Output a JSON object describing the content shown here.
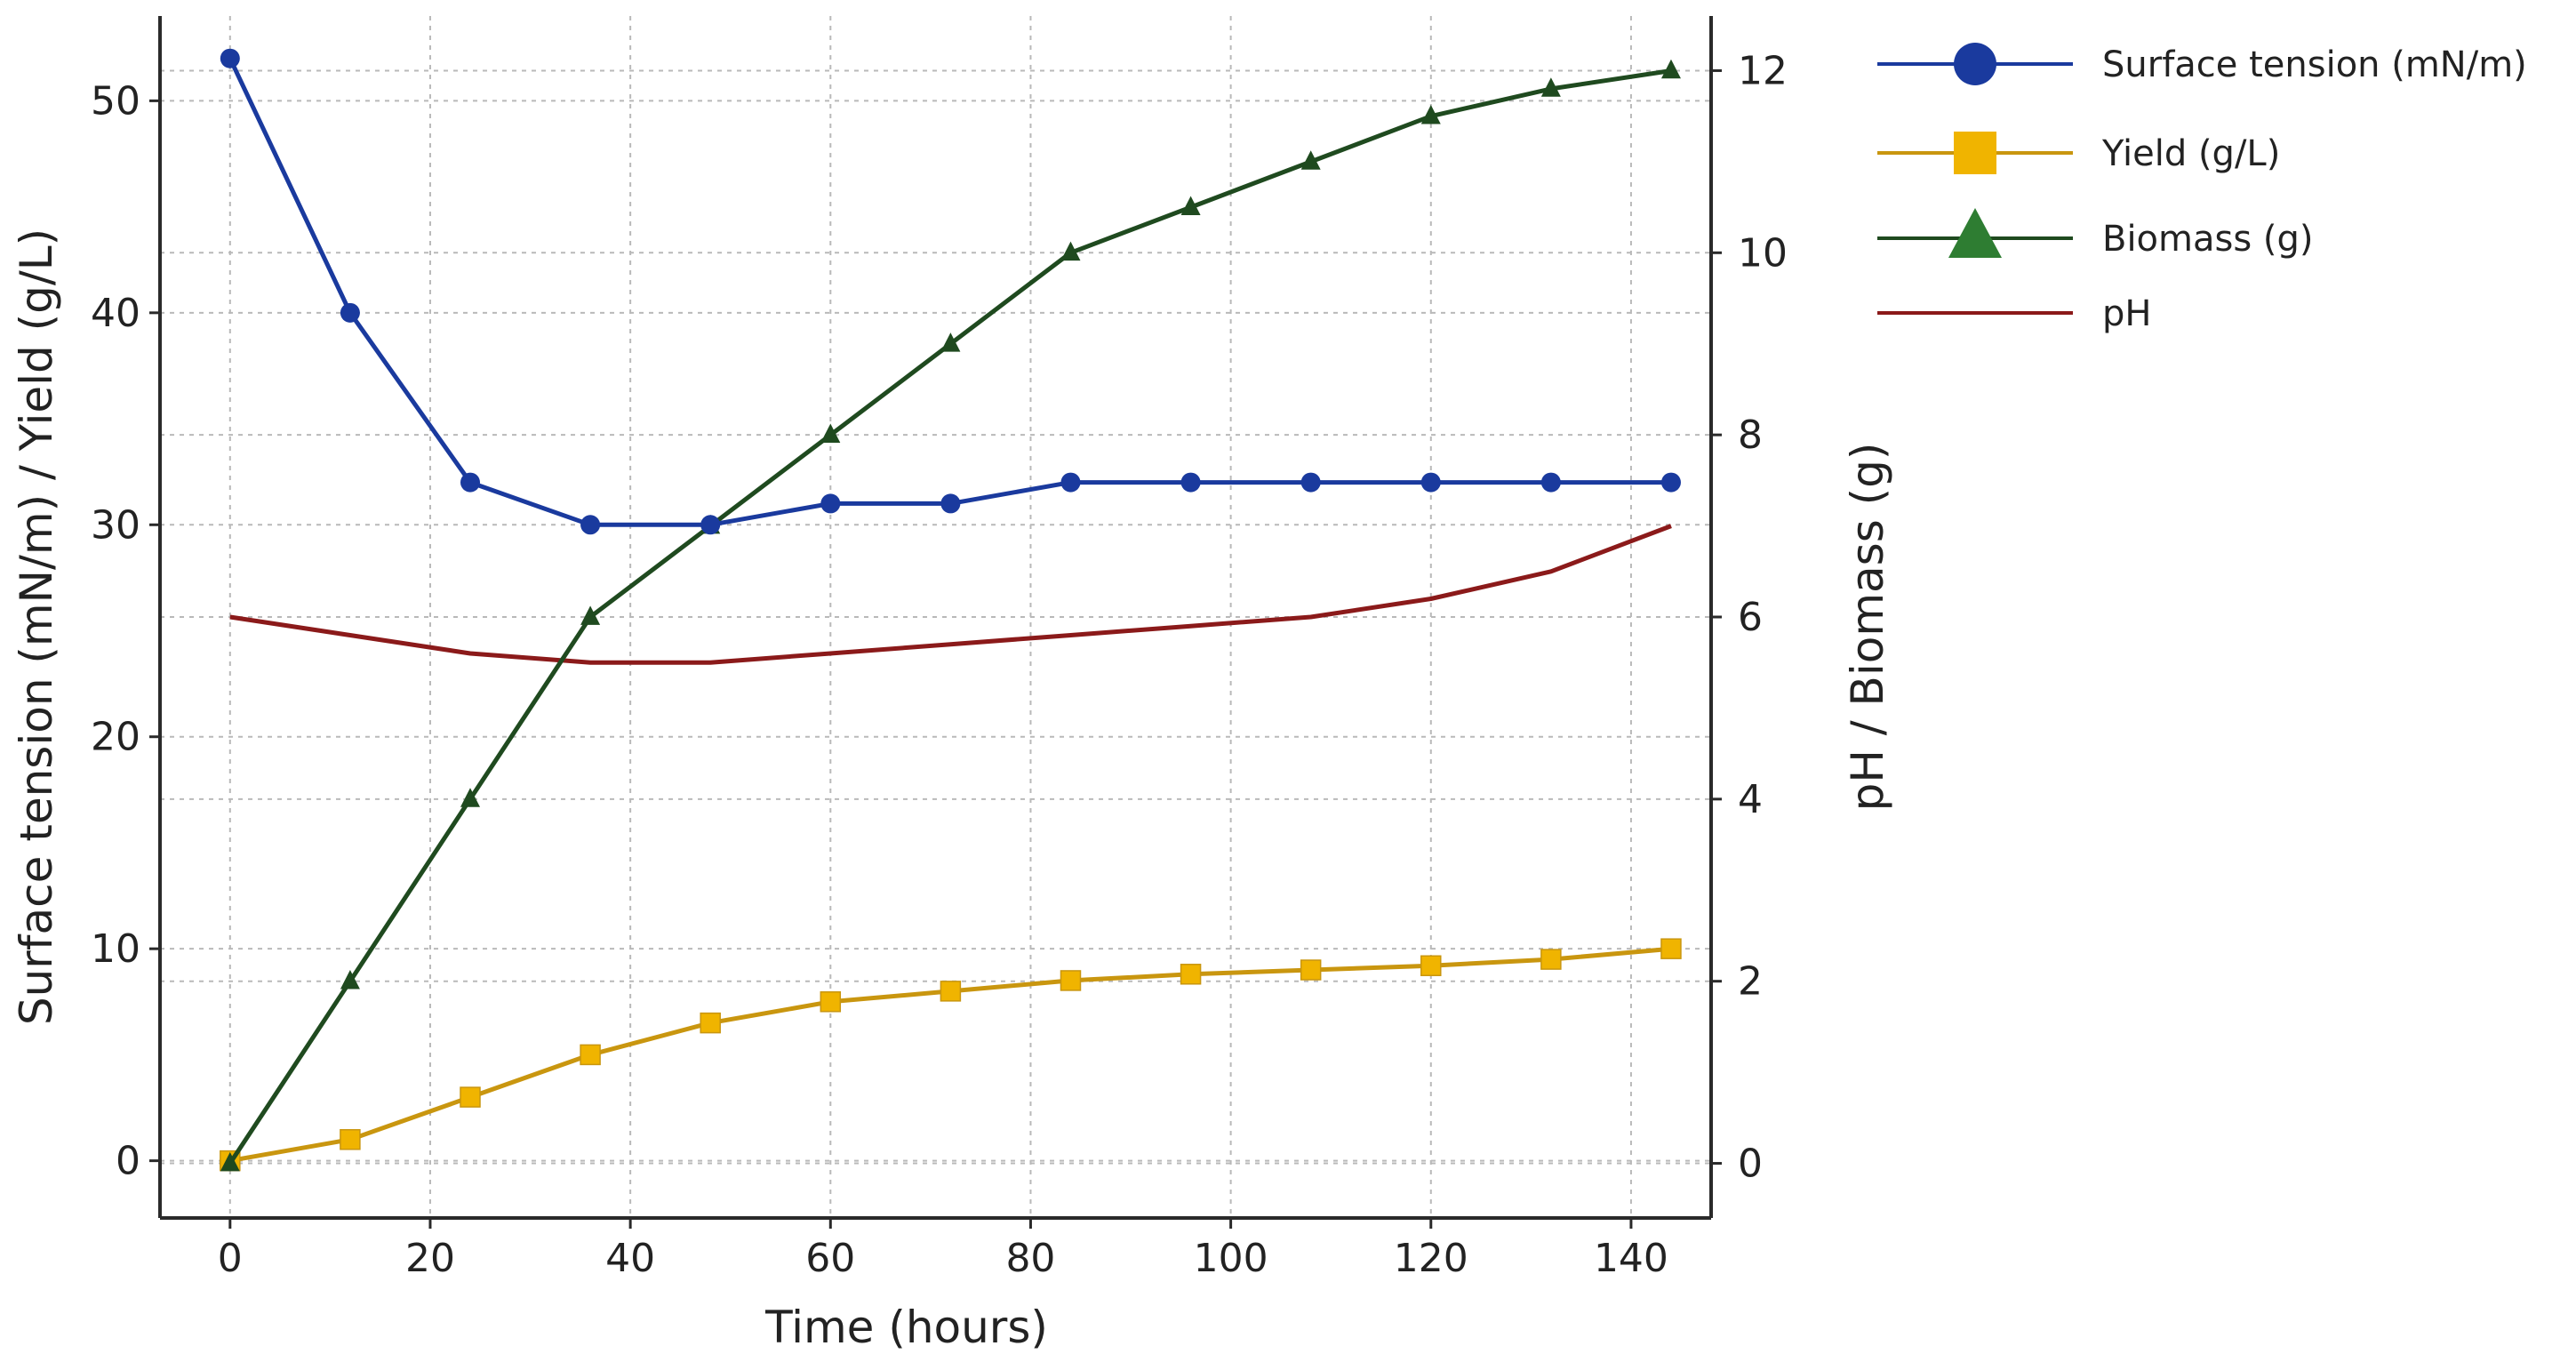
{
  "chart_data": {
    "type": "line",
    "title": "",
    "xlabel": "Time (hours)",
    "ylabel_left": "Surface tension (mN/m) / Yield (g/L)",
    "ylabel_right": "pH / Biomass (g)",
    "xlim": [
      -7,
      148
    ],
    "ylim_left": [
      -2.7,
      54
    ],
    "ylim_right": [
      -0.6,
      12.6
    ],
    "xticks": [
      0,
      20,
      40,
      60,
      80,
      100,
      120,
      140
    ],
    "yticks_left": [
      0,
      10,
      20,
      30,
      40,
      50
    ],
    "yticks_right": [
      0,
      2,
      4,
      6,
      8,
      10,
      12
    ],
    "grid": true,
    "legend_position": "outside-right-top",
    "series": [
      {
        "name": "Surface tension (mN/m)",
        "axis": "left",
        "marker": "circle",
        "color": "#1a3a9e",
        "x": [
          0,
          12,
          24,
          36,
          48,
          60,
          72,
          84,
          96,
          108,
          120,
          132,
          144
        ],
        "y": [
          52,
          40,
          32,
          30,
          30,
          31,
          31,
          32,
          32,
          32,
          32,
          32,
          32
        ]
      },
      {
        "name": "Yield (g/L)",
        "axis": "left",
        "marker": "square",
        "color": "#f0b400",
        "line_color": "#c9960f",
        "x": [
          0,
          12,
          24,
          36,
          48,
          60,
          72,
          84,
          96,
          108,
          120,
          132,
          144
        ],
        "y": [
          0,
          1,
          3,
          5,
          6.5,
          7.5,
          8,
          8.5,
          8.8,
          9,
          9.2,
          9.5,
          10
        ]
      },
      {
        "name": "Biomass (g)",
        "axis": "right",
        "marker": "triangle",
        "color": "#2e7d32",
        "line_color": "#1f4a1f",
        "x": [
          0,
          12,
          24,
          36,
          48,
          60,
          72,
          84,
          96,
          108,
          120,
          132,
          144
        ],
        "y": [
          0,
          2,
          4,
          6,
          7,
          8,
          9,
          10,
          10.5,
          11,
          11.5,
          11.8,
          12
        ]
      },
      {
        "name": "pH",
        "axis": "right",
        "marker": "none",
        "color": "#8b1a1a",
        "x": [
          0,
          12,
          24,
          36,
          48,
          60,
          72,
          84,
          96,
          108,
          120,
          132,
          144
        ],
        "y": [
          6.0,
          5.8,
          5.6,
          5.5,
          5.5,
          5.6,
          5.7,
          5.8,
          5.9,
          6.0,
          6.2,
          6.5,
          7.0
        ]
      }
    ]
  }
}
